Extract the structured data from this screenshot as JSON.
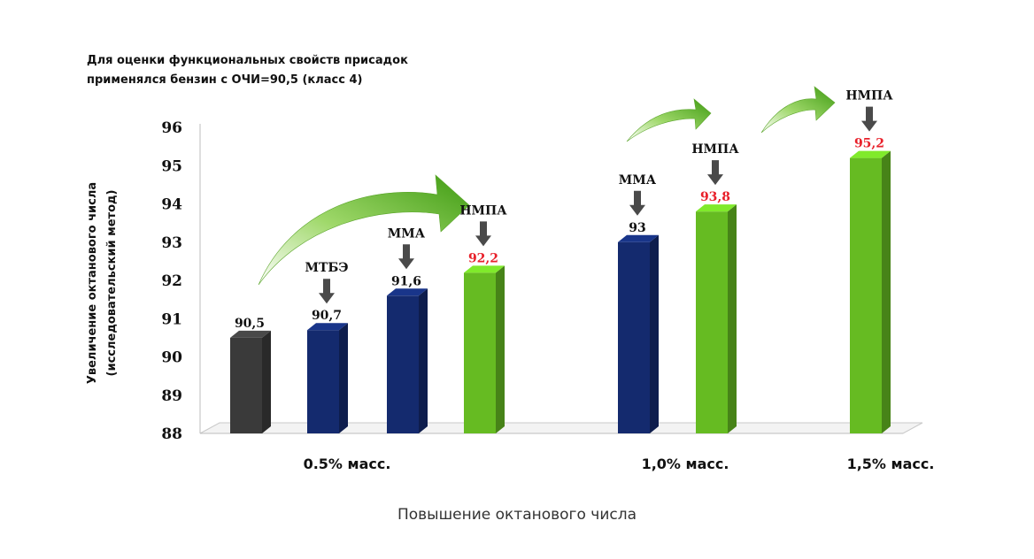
{
  "note": {
    "line1": "Для оценки функциональных свойств присадок",
    "line2": "применялся бензин с ОЧИ=90,5 (класс 4)"
  },
  "caption": "Повышение октанового числа",
  "chart_data": {
    "type": "bar",
    "title": "",
    "ylabel_lines": [
      "Увеличение октанового числа",
      "(исследовательский метод)"
    ],
    "xlabel": "",
    "ylim": [
      88,
      96
    ],
    "yticks": [
      88,
      89,
      90,
      91,
      92,
      93,
      94,
      95,
      96
    ],
    "grid": false,
    "groups": [
      {
        "label": "0.5% масс."
      },
      {
        "label": "1,0% масс."
      },
      {
        "label": "1,5% масс."
      }
    ],
    "bars": [
      {
        "group": 0,
        "additive": "",
        "value": 90.5,
        "value_label": "90,5",
        "color": "#3a3a3a",
        "value_color": "#111111"
      },
      {
        "group": 0,
        "additive": "МТБЭ",
        "value": 90.7,
        "value_label": "90,7",
        "color": "#142a6e",
        "value_color": "#111111"
      },
      {
        "group": 0,
        "additive": "ММА",
        "value": 91.6,
        "value_label": "91,6",
        "color": "#142a6e",
        "value_color": "#111111"
      },
      {
        "group": 0,
        "additive": "НМПА",
        "value": 92.2,
        "value_label": "92,2",
        "color": "#66bb22",
        "value_color": "#e8202a"
      },
      {
        "group": 1,
        "additive": "ММА",
        "value": 93.0,
        "value_label": "93",
        "color": "#142a6e",
        "value_color": "#111111"
      },
      {
        "group": 1,
        "additive": "НМПА",
        "value": 93.8,
        "value_label": "93,8",
        "color": "#66bb22",
        "value_color": "#e8202a"
      },
      {
        "group": 2,
        "additive": "НМПА",
        "value": 95.2,
        "value_label": "95,2",
        "color": "#66bb22",
        "value_color": "#e8202a"
      }
    ],
    "colors": {
      "base_fuel": "#3a3a3a",
      "competitor": "#142a6e",
      "nmpa": "#66bb22",
      "highlight_text": "#e8202a",
      "arrow_gray": "#4a4a4a"
    }
  }
}
